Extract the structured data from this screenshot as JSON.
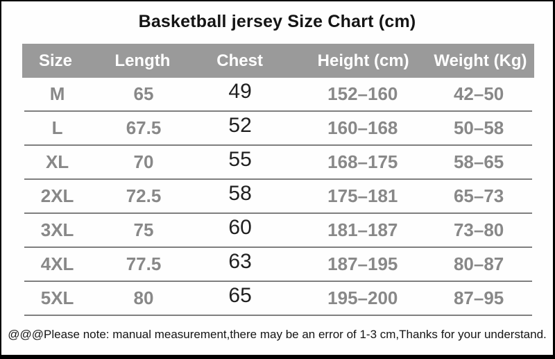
{
  "title": "Basketball jersey Size Chart (cm)",
  "table": {
    "columns": [
      "Size",
      "Length",
      "Chest",
      "Height (cm)",
      "Weight (Kg)"
    ],
    "rows": [
      {
        "size": "M",
        "length": "65",
        "chest": "49",
        "height": "152–160",
        "weight": "42–50"
      },
      {
        "size": "L",
        "length": "67.5",
        "chest": "52",
        "height": "160–168",
        "weight": "50–58"
      },
      {
        "size": "XL",
        "length": "70",
        "chest": "55",
        "height": "168–175",
        "weight": "58–65"
      },
      {
        "size": "2XL",
        "length": "72.5",
        "chest": "58",
        "height": "175–181",
        "weight": "65–73"
      },
      {
        "size": "3XL",
        "length": "75",
        "chest": "60",
        "height": "181–187",
        "weight": "73–80"
      },
      {
        "size": "4XL",
        "length": "77.5",
        "chest": "63",
        "height": "187–195",
        "weight": "80–87"
      },
      {
        "size": "5XL",
        "length": "80",
        "chest": "65",
        "height": "195–200",
        "weight": "87–95"
      }
    ]
  },
  "note": "@@@Please note: manual measurement,there may be an error of 1-3 cm,Thanks for your understand.",
  "colors": {
    "header_bg": "#9a9a9a",
    "header_text": "#ffffff",
    "row_text": "#888888",
    "chest_text": "#1f1f1f",
    "separator_line": "#7f7f7f",
    "title_text": "#141414",
    "frame_border": "#000000"
  }
}
